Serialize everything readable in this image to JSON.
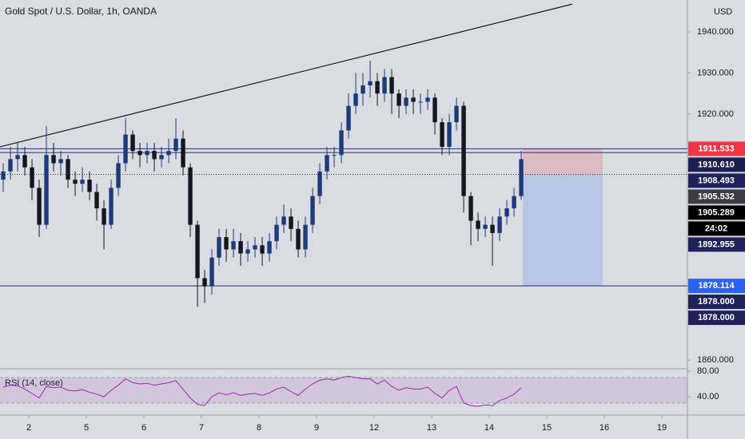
{
  "chart_data": {
    "type": "candlestick",
    "title": "Gold Spot / U.S. Dollar, 1h, OANDA",
    "currency": "USD",
    "x": [
      -0.444,
      -0.319,
      -0.194,
      -0.069,
      0.056,
      0.181,
      0.306,
      0.431,
      0.556,
      0.681,
      0.806,
      0.931,
      1.056,
      1.181,
      1.306,
      1.431,
      1.556,
      1.681,
      1.806,
      1.931,
      2.056,
      2.181,
      2.306,
      2.431,
      2.556,
      2.681,
      2.806,
      2.931,
      3.056,
      3.181,
      3.306,
      3.431,
      3.556,
      3.681,
      3.806,
      3.931,
      4.056,
      4.181,
      4.306,
      4.431,
      4.556,
      4.681,
      4.806,
      4.931,
      5.056,
      5.181,
      5.306,
      5.431,
      5.556,
      5.681,
      5.806,
      5.931,
      6.056,
      6.181,
      6.306,
      6.431,
      6.556,
      6.681,
      6.806,
      6.931,
      7.056,
      7.181,
      7.306,
      7.431,
      7.556,
      7.681,
      7.806,
      7.931,
      8.056,
      8.181,
      8.306,
      8.431,
      8.556
    ],
    "open": [
      1904,
      1906,
      1909,
      1910,
      1907,
      1902,
      1893,
      1910,
      1908,
      1909,
      1904,
      1903,
      1904,
      1901,
      1897,
      1893,
      1902,
      1908,
      1915,
      1911,
      1910,
      1911,
      1909,
      1910,
      1911,
      1914,
      1907,
      1893,
      1880,
      1878,
      1885,
      1890,
      1887,
      1889,
      1886,
      1887,
      1888,
      1886,
      1889,
      1893,
      1895,
      1892,
      1887,
      1893,
      1900,
      1906,
      1910,
      1910,
      1916,
      1922,
      1925,
      1927,
      1928,
      1925,
      1929,
      1925,
      1922,
      1924,
      1923,
      1923,
      1924,
      1918,
      1912,
      1918,
      1922,
      1900,
      1894,
      1892,
      1893,
      1891,
      1895,
      1897,
      1900
    ],
    "high": [
      1908,
      1912,
      1913,
      1912,
      1909,
      1904,
      1917,
      1913,
      1911,
      1910,
      1906,
      1907,
      1906,
      1903,
      1899,
      1904,
      1910,
      1919,
      1916,
      1913,
      1913,
      1913,
      1912,
      1914,
      1919,
      1916,
      1908,
      1894,
      1882,
      1887,
      1892,
      1892,
      1892,
      1891,
      1889,
      1890,
      1890,
      1891,
      1895,
      1898,
      1897,
      1894,
      1895,
      1902,
      1908,
      1912,
      1912,
      1918,
      1925,
      1930,
      1930,
      1933,
      1930,
      1931,
      1931,
      1926,
      1926,
      1926,
      1925,
      1926,
      1925,
      1919,
      1920,
      1924,
      1923,
      1901,
      1896,
      1895,
      1895,
      1897,
      1899,
      1902,
      1911
    ],
    "low": [
      1901,
      1904,
      1906,
      1905,
      1899,
      1890,
      1892,
      1906,
      1905,
      1902,
      1900,
      1901,
      1899,
      1894,
      1887,
      1892,
      1900,
      1906,
      1909,
      1907,
      1908,
      1906,
      1907,
      1908,
      1909,
      1905,
      1890,
      1873,
      1874,
      1876,
      1883,
      1884,
      1885,
      1883,
      1884,
      1885,
      1883,
      1884,
      1887,
      1891,
      1889,
      1885,
      1885,
      1891,
      1898,
      1904,
      1907,
      1908,
      1914,
      1920,
      1922,
      1924,
      1922,
      1923,
      1920,
      1919,
      1920,
      1920,
      1920,
      1921,
      1915,
      1910,
      1910,
      1916,
      1896,
      1888,
      1889,
      1890,
      1883,
      1889,
      1893,
      1895,
      1899
    ],
    "close": [
      1906,
      1909,
      1910,
      1907,
      1902,
      1893,
      1910,
      1908,
      1909,
      1904,
      1903,
      1904,
      1901,
      1897,
      1893,
      1902,
      1908,
      1915,
      1911,
      1910,
      1911,
      1909,
      1910,
      1911,
      1914,
      1907,
      1893,
      1880,
      1878,
      1885,
      1890,
      1887,
      1889,
      1886,
      1887,
      1888,
      1886,
      1889,
      1893,
      1895,
      1892,
      1887,
      1893,
      1900,
      1906,
      1910,
      1910,
      1916,
      1922,
      1925,
      1927,
      1928,
      1925,
      1929,
      1925,
      1922,
      1924,
      1923,
      1923,
      1924,
      1918,
      1912,
      1918,
      1922,
      1900,
      1894,
      1892,
      1893,
      1891,
      1895,
      1897,
      1900,
      1909
    ],
    "up_color": "#1f3a7a",
    "down_color": "#131722",
    "xlim": [
      -0.5,
      11.444
    ],
    "xticks": [
      {
        "value": 0,
        "label": "2"
      },
      {
        "value": 1,
        "label": "5"
      },
      {
        "value": 2,
        "label": "6"
      },
      {
        "value": 3,
        "label": "7"
      },
      {
        "value": 4,
        "label": "8"
      },
      {
        "value": 5,
        "label": "9"
      },
      {
        "value": 6,
        "label": "12"
      },
      {
        "value": 7,
        "label": "13"
      },
      {
        "value": 8,
        "label": "14"
      },
      {
        "value": 9,
        "label": "15"
      },
      {
        "value": 10,
        "label": "16"
      },
      {
        "value": 11,
        "label": "19"
      }
    ],
    "ylim": [
      1857.9,
      1947.8
    ],
    "yticks": [
      {
        "value": 1940,
        "label": "1940.000"
      },
      {
        "value": 1930,
        "label": "1930.000"
      },
      {
        "value": 1920,
        "label": "1920.000"
      },
      {
        "value": 1860,
        "label": "1860.000"
      }
    ],
    "trendline": {
      "x": [
        -0.5,
        9.444
      ],
      "y": [
        1912.0,
        1946.8
      ]
    },
    "levels": [
      1911.533,
      1910.61,
      1878.114
    ],
    "current_price": 1905.289,
    "position": {
      "x": [
        8.583,
        9.972
      ],
      "stop": 1911.533,
      "entry": 1905.289,
      "target": 1878.114
    },
    "price_tags": [
      {
        "value": 1911.533,
        "label": "1911.533",
        "color": "#f23645"
      },
      {
        "value": 1910.61,
        "label": "1910.610",
        "color": "#1c1f4f"
      },
      {
        "value": 1908.493,
        "label": "1908.493",
        "color": "#1f215c"
      },
      {
        "value": 1905.532,
        "label": "1905.532",
        "color": "#3a3d47"
      },
      {
        "value": 1905.289,
        "label": "1905.289",
        "color": "#000000"
      },
      {
        "label": "24:02",
        "color": "#000000"
      },
      {
        "value": 1892.955,
        "label": "1892.955",
        "color": "#1f215c"
      },
      {
        "value": 1878.114,
        "label": "1878.114",
        "color": "#2962ff"
      },
      {
        "value": 1878.0,
        "label": "1878.000",
        "color": "#1f215c"
      },
      {
        "value": 1878.0,
        "label": "1878.000",
        "color": "#1f215c"
      }
    ],
    "rsi": {
      "title": "RSI (14, close)",
      "color": "#9c27b0",
      "values": [
        55,
        58,
        57,
        52,
        45,
        38,
        56,
        54,
        55,
        50,
        49,
        51,
        47,
        44,
        40,
        50,
        58,
        68,
        62,
        60,
        61,
        58,
        60,
        62,
        65,
        52,
        38,
        28,
        26,
        40,
        46,
        43,
        46,
        42,
        44,
        45,
        42,
        46,
        52,
        55,
        48,
        42,
        52,
        60,
        66,
        68,
        66,
        70,
        72,
        70,
        68,
        68,
        60,
        66,
        56,
        50,
        54,
        52,
        52,
        55,
        45,
        38,
        50,
        56,
        30,
        26,
        25,
        27,
        26,
        34,
        38,
        44,
        54
      ],
      "band": [
        30,
        70
      ],
      "ylim": [
        17.5,
        83.75
      ],
      "yticks": [
        {
          "value": 80,
          "label": "80.00"
        },
        {
          "value": 40,
          "label": "40.00"
        }
      ]
    }
  }
}
